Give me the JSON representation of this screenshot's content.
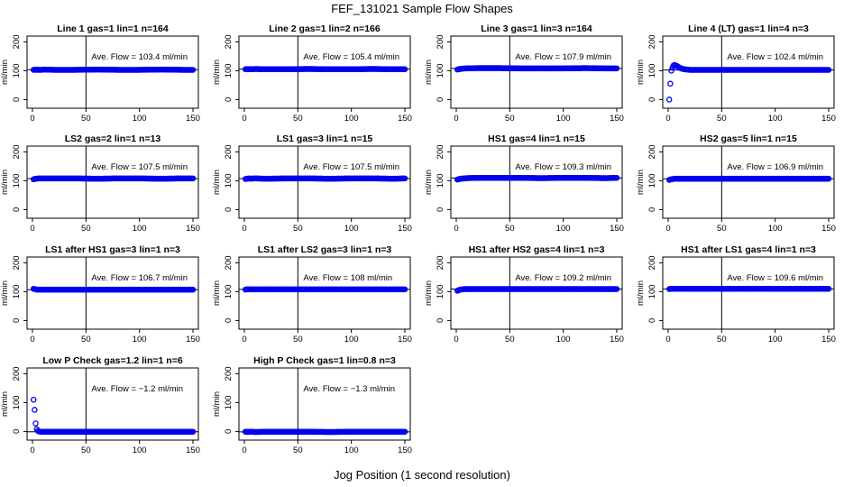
{
  "page": {
    "title": "FEF_131021  Sample Flow Shapes",
    "x_caption": "Jog Position (1 second resolution)"
  },
  "colors": {
    "points": "#0000ee",
    "lines": "#000000"
  },
  "chart_data": [
    {
      "type": "scatter",
      "title": "Line 1 gas=1 lin=1 n=164",
      "annotation": "Ave. Flow = 103.4  ml/min",
      "xlabel": "",
      "ylabel": "ml/min",
      "xlim": [
        0,
        150
      ],
      "ylim": [
        -30,
        220
      ],
      "x_ticks": [
        0,
        50,
        100,
        150
      ],
      "y_ticks": [
        0,
        100,
        200
      ],
      "hline": 103.4,
      "vline": 50,
      "series": [
        {
          "x": [
            1,
            2,
            3,
            4,
            5,
            6,
            8,
            10,
            20,
            40,
            60,
            80,
            100,
            120,
            140,
            150
          ],
          "y": [
            103,
            104,
            103,
            103,
            104,
            103,
            103,
            104,
            103,
            103,
            104,
            103,
            103,
            104,
            103,
            103
          ]
        }
      ]
    },
    {
      "type": "scatter",
      "title": "Line 2 gas=1 lin=2 n=166",
      "annotation": "Ave. Flow = 105.4  ml/min",
      "xlabel": "",
      "ylabel": "ml/min",
      "xlim": [
        0,
        150
      ],
      "ylim": [
        -30,
        220
      ],
      "x_ticks": [
        0,
        50,
        100,
        150
      ],
      "y_ticks": [
        0,
        100,
        200
      ],
      "hline": 105.4,
      "vline": 50,
      "series": [
        {
          "x": [
            1,
            2,
            3,
            4,
            5,
            6,
            8,
            10,
            20,
            40,
            60,
            80,
            100,
            120,
            140,
            150
          ],
          "y": [
            105,
            106,
            105,
            105,
            106,
            105,
            105,
            106,
            105,
            105,
            106,
            105,
            105,
            106,
            105,
            105
          ]
        }
      ]
    },
    {
      "type": "scatter",
      "title": "Line 3 gas=1 lin=3 n=164",
      "annotation": "Ave. Flow = 107.9  ml/min",
      "xlabel": "",
      "ylabel": "ml/min",
      "xlim": [
        0,
        150
      ],
      "ylim": [
        -30,
        220
      ],
      "x_ticks": [
        0,
        50,
        100,
        150
      ],
      "y_ticks": [
        0,
        100,
        200
      ],
      "hline": 107.9,
      "vline": 50,
      "series": [
        {
          "x": [
            1,
            2,
            3,
            4,
            5,
            6,
            8,
            10,
            20,
            40,
            60,
            80,
            100,
            120,
            140,
            150
          ],
          "y": [
            104,
            105,
            106,
            106,
            107,
            107,
            108,
            108,
            109,
            109,
            108,
            108,
            108,
            109,
            108,
            108
          ]
        }
      ]
    },
    {
      "type": "scatter",
      "title": "Line 4 (LT) gas=1 lin=4 n=3",
      "annotation": "Ave. Flow = 102.4  ml/min",
      "xlabel": "",
      "ylabel": "ml/min",
      "xlim": [
        0,
        150
      ],
      "ylim": [
        -30,
        220
      ],
      "x_ticks": [
        0,
        50,
        100,
        150
      ],
      "y_ticks": [
        0,
        100,
        200
      ],
      "hline": 102.4,
      "vline": 50,
      "series": [
        {
          "x": [
            1,
            2,
            3,
            4,
            5,
            6,
            8,
            10,
            12,
            15,
            20,
            40,
            60,
            80,
            100,
            120,
            140,
            150
          ],
          "y": [
            0,
            55,
            100,
            110,
            118,
            120,
            117,
            112,
            108,
            105,
            103,
            103,
            103,
            103,
            103,
            103,
            103,
            103
          ]
        }
      ]
    },
    {
      "type": "scatter",
      "title": "LS2 gas=2 lin=1 n=13",
      "annotation": "Ave. Flow = 107.5  ml/min",
      "xlabel": "",
      "ylabel": "ml/min",
      "xlim": [
        0,
        150
      ],
      "ylim": [
        -30,
        220
      ],
      "x_ticks": [
        0,
        50,
        100,
        150
      ],
      "y_ticks": [
        0,
        100,
        200
      ],
      "hline": 107.5,
      "vline": 50,
      "series": [
        {
          "x": [
            1,
            2,
            3,
            4,
            5,
            6,
            8,
            10,
            20,
            40,
            60,
            80,
            100,
            120,
            140,
            150
          ],
          "y": [
            105,
            106,
            107,
            107,
            108,
            108,
            108,
            108,
            108,
            108,
            107,
            108,
            108,
            107,
            108,
            108
          ]
        }
      ]
    },
    {
      "type": "scatter",
      "title": "LS1 gas=3 lin=1 n=15",
      "annotation": "Ave. Flow = 107.5  ml/min",
      "xlabel": "",
      "ylabel": "ml/min",
      "xlim": [
        0,
        150
      ],
      "ylim": [
        -30,
        220
      ],
      "x_ticks": [
        0,
        50,
        100,
        150
      ],
      "y_ticks": [
        0,
        100,
        200
      ],
      "hline": 107.5,
      "vline": 50,
      "series": [
        {
          "x": [
            1,
            2,
            3,
            4,
            5,
            6,
            8,
            10,
            20,
            40,
            60,
            80,
            100,
            120,
            140,
            150
          ],
          "y": [
            106,
            107,
            107,
            108,
            108,
            107,
            108,
            108,
            107,
            108,
            108,
            107,
            108,
            108,
            107,
            108
          ]
        }
      ]
    },
    {
      "type": "scatter",
      "title": "HS1 gas=4 lin=1 n=15",
      "annotation": "Ave. Flow = 109.3  ml/min",
      "xlabel": "",
      "ylabel": "ml/min",
      "xlim": [
        0,
        150
      ],
      "ylim": [
        -30,
        220
      ],
      "x_ticks": [
        0,
        50,
        100,
        150
      ],
      "y_ticks": [
        0,
        100,
        200
      ],
      "hline": 109.3,
      "vline": 50,
      "series": [
        {
          "x": [
            1,
            2,
            3,
            4,
            5,
            6,
            8,
            10,
            20,
            40,
            60,
            80,
            100,
            120,
            140,
            150
          ],
          "y": [
            104,
            105,
            106,
            107,
            107,
            108,
            108,
            109,
            110,
            110,
            110,
            109,
            110,
            110,
            109,
            110
          ]
        }
      ]
    },
    {
      "type": "scatter",
      "title": "HS2 gas=5 lin=1 n=15",
      "annotation": "Ave. Flow = 106.9  ml/min",
      "xlabel": "",
      "ylabel": "ml/min",
      "xlim": [
        0,
        150
      ],
      "ylim": [
        -30,
        220
      ],
      "x_ticks": [
        0,
        50,
        100,
        150
      ],
      "y_ticks": [
        0,
        100,
        200
      ],
      "hline": 106.9,
      "vline": 50,
      "series": [
        {
          "x": [
            1,
            2,
            3,
            4,
            5,
            6,
            8,
            10,
            20,
            40,
            60,
            80,
            100,
            120,
            140,
            150
          ],
          "y": [
            103,
            104,
            105,
            106,
            106,
            107,
            107,
            107,
            107,
            107,
            107,
            107,
            107,
            107,
            107,
            107
          ]
        }
      ]
    },
    {
      "type": "scatter",
      "title": "LS1 after HS1 gas=3 lin=1 n=3",
      "annotation": "Ave. Flow = 106.7  ml/min",
      "xlabel": "",
      "ylabel": "ml/min",
      "xlim": [
        0,
        150
      ],
      "ylim": [
        -30,
        220
      ],
      "x_ticks": [
        0,
        50,
        100,
        150
      ],
      "y_ticks": [
        0,
        100,
        200
      ],
      "hline": 106.7,
      "vline": 50,
      "series": [
        {
          "x": [
            1,
            2,
            3,
            4,
            5,
            6,
            8,
            10,
            20,
            40,
            60,
            80,
            100,
            120,
            140,
            150
          ],
          "y": [
            110,
            109,
            108,
            107,
            107,
            107,
            107,
            107,
            107,
            107,
            107,
            107,
            107,
            107,
            107,
            107
          ]
        }
      ]
    },
    {
      "type": "scatter",
      "title": "LS1 after LS2 gas=3 lin=1 n=3",
      "annotation": "Ave. Flow = 108  ml/min",
      "xlabel": "",
      "ylabel": "ml/min",
      "xlim": [
        0,
        150
      ],
      "ylim": [
        -30,
        220
      ],
      "x_ticks": [
        0,
        50,
        100,
        150
      ],
      "y_ticks": [
        0,
        100,
        200
      ],
      "hline": 108,
      "vline": 50,
      "series": [
        {
          "x": [
            1,
            2,
            3,
            4,
            5,
            6,
            8,
            10,
            20,
            40,
            60,
            80,
            100,
            120,
            140,
            150
          ],
          "y": [
            107,
            108,
            108,
            108,
            108,
            108,
            108,
            108,
            108,
            108,
            108,
            108,
            108,
            108,
            108,
            108
          ]
        }
      ]
    },
    {
      "type": "scatter",
      "title": "HS1 after HS2 gas=4 lin=1 n=3",
      "annotation": "Ave. Flow = 109.2  ml/min",
      "xlabel": "",
      "ylabel": "ml/min",
      "xlim": [
        0,
        150
      ],
      "ylim": [
        -30,
        220
      ],
      "x_ticks": [
        0,
        50,
        100,
        150
      ],
      "y_ticks": [
        0,
        100,
        200
      ],
      "hline": 109.2,
      "vline": 50,
      "series": [
        {
          "x": [
            1,
            2,
            3,
            4,
            5,
            6,
            8,
            10,
            20,
            40,
            60,
            80,
            100,
            120,
            140,
            150
          ],
          "y": [
            103,
            105,
            106,
            107,
            108,
            108,
            109,
            109,
            109,
            109,
            109,
            109,
            109,
            109,
            109,
            109
          ]
        }
      ]
    },
    {
      "type": "scatter",
      "title": "HS1 after LS1 gas=4 lin=1 n=3",
      "annotation": "Ave. Flow = 109.6  ml/min",
      "xlabel": "",
      "ylabel": "ml/min",
      "xlim": [
        0,
        150
      ],
      "ylim": [
        -30,
        220
      ],
      "x_ticks": [
        0,
        50,
        100,
        150
      ],
      "y_ticks": [
        0,
        100,
        200
      ],
      "hline": 109.6,
      "vline": 50,
      "series": [
        {
          "x": [
            1,
            2,
            3,
            4,
            5,
            6,
            8,
            10,
            20,
            40,
            60,
            80,
            100,
            120,
            140,
            150
          ],
          "y": [
            109,
            110,
            110,
            110,
            110,
            110,
            110,
            110,
            110,
            110,
            110,
            110,
            110,
            110,
            110,
            110
          ]
        }
      ]
    },
    {
      "type": "scatter",
      "title": "Low P Check gas=1.2 lin=1 n=6",
      "annotation": "Ave. Flow = −1.2  ml/min",
      "xlabel": "",
      "ylabel": "ml/min",
      "xlim": [
        0,
        150
      ],
      "ylim": [
        -30,
        220
      ],
      "x_ticks": [
        0,
        50,
        100,
        150
      ],
      "y_ticks": [
        0,
        100,
        200
      ],
      "hline": -1.2,
      "vline": 50,
      "series": [
        {
          "x": [
            1,
            2,
            3,
            4,
            5,
            6,
            8,
            10,
            20,
            40,
            60,
            80,
            100,
            120,
            140,
            150
          ],
          "y": [
            110,
            75,
            28,
            8,
            2,
            0,
            -1,
            -1,
            -1,
            -1,
            -1,
            -1,
            -1,
            -1,
            -1,
            -1
          ]
        }
      ]
    },
    {
      "type": "scatter",
      "title": "High P Check gas=1 lin=0.8 n=3",
      "annotation": "Ave. Flow = −1.3  ml/min",
      "xlabel": "",
      "ylabel": "ml/min",
      "xlim": [
        0,
        150
      ],
      "ylim": [
        -30,
        220
      ],
      "x_ticks": [
        0,
        50,
        100,
        150
      ],
      "y_ticks": [
        0,
        100,
        200
      ],
      "hline": -1.3,
      "vline": 50,
      "series": [
        {
          "x": [
            1,
            2,
            3,
            4,
            5,
            6,
            8,
            10,
            20,
            40,
            60,
            80,
            100,
            120,
            140,
            150
          ],
          "y": [
            -1,
            -1,
            -2,
            -1,
            -1,
            -1,
            -1,
            -2,
            -1,
            -1,
            -1,
            -2,
            -1,
            -1,
            -1,
            -1
          ]
        }
      ]
    }
  ]
}
